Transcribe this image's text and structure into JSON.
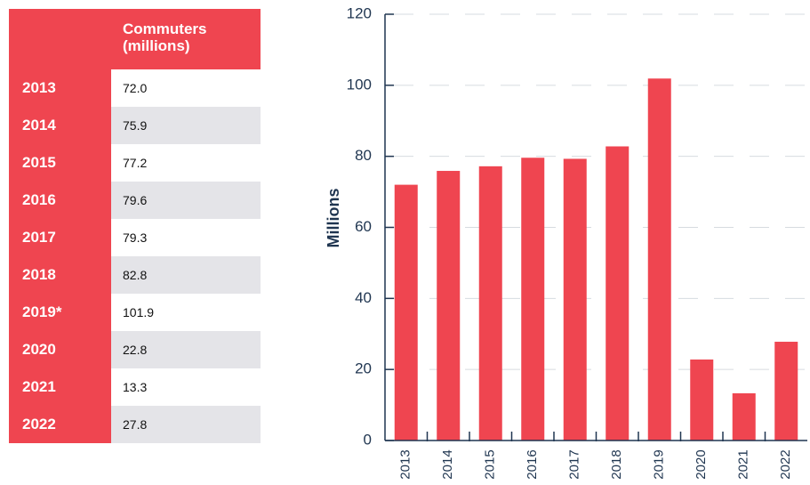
{
  "table": {
    "header": "Commuters (millions)",
    "rows": [
      [
        "2013",
        "72.0"
      ],
      [
        "2014",
        "75.9"
      ],
      [
        "2015",
        "77.2"
      ],
      [
        "2016",
        "79.6"
      ],
      [
        "2017",
        "79.3"
      ],
      [
        "2018",
        "82.8"
      ],
      [
        "2019*",
        "101.9"
      ],
      [
        "2020",
        "22.8"
      ],
      [
        "2021",
        "13.3"
      ],
      [
        "2022",
        "27.8"
      ]
    ]
  },
  "chart_data": {
    "type": "bar",
    "ylabel": "Millions",
    "categories": [
      "2013",
      "2014",
      "2015",
      "2016",
      "2017",
      "2018",
      "2019",
      "2020",
      "2021",
      "2022"
    ],
    "values": [
      72.0,
      75.9,
      77.2,
      79.6,
      79.3,
      82.8,
      101.9,
      22.8,
      13.3,
      27.8
    ],
    "color": "#ef4550",
    "ylim": [
      0,
      120
    ],
    "yticks": [
      0,
      20,
      40,
      60,
      80,
      100,
      120
    ],
    "grid": true
  }
}
